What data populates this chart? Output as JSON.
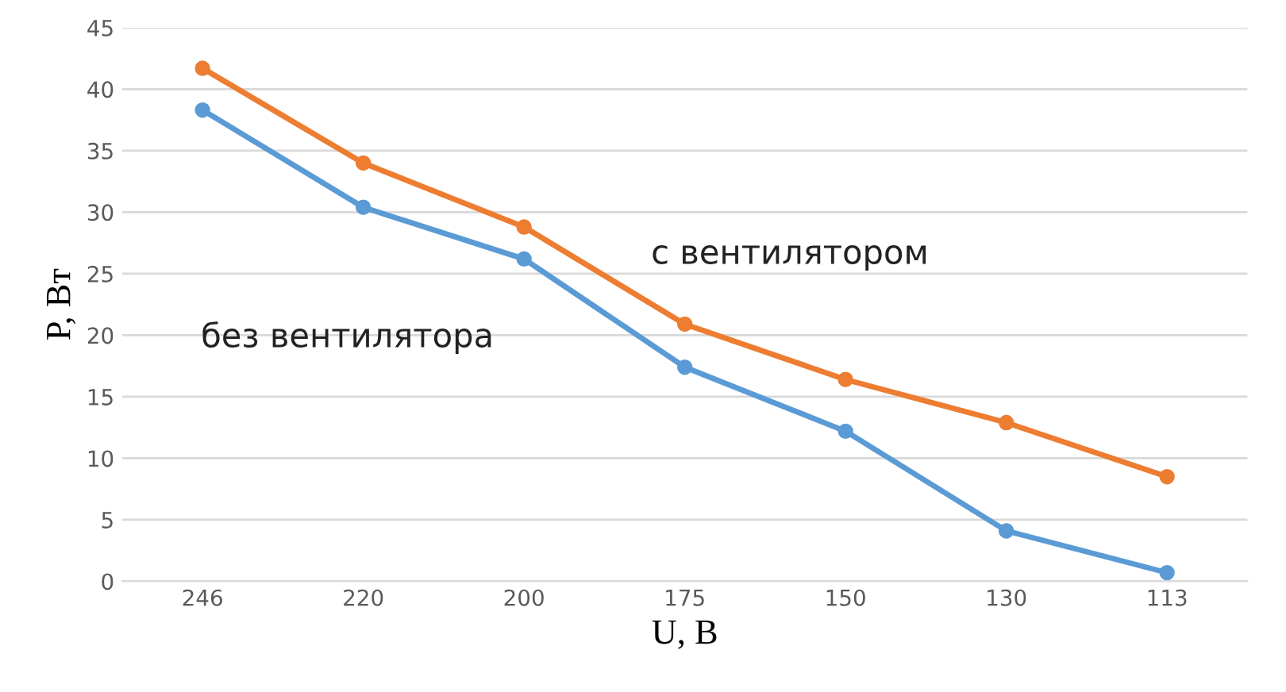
{
  "chart_data": {
    "type": "line",
    "xlabel": "U, В",
    "ylabel": "P, Вт",
    "categories": [
      "246",
      "220",
      "200",
      "175",
      "150",
      "130",
      "113"
    ],
    "series": [
      {
        "name": "без вентилятора",
        "color": "#5b9bd5",
        "values": [
          38.3,
          30.4,
          26.2,
          17.4,
          12.2,
          4.1,
          0.7
        ]
      },
      {
        "name": "с вентилятором",
        "color": "#ed7d31",
        "values": [
          41.7,
          34.0,
          28.8,
          20.9,
          16.4,
          12.9,
          8.5
        ]
      }
    ],
    "ylim": [
      0,
      45
    ],
    "yticks": [
      0,
      5,
      10,
      15,
      20,
      25,
      30,
      35,
      40,
      45
    ],
    "grid": "y",
    "marker": "circle",
    "line_style": "solid",
    "legend": false
  }
}
